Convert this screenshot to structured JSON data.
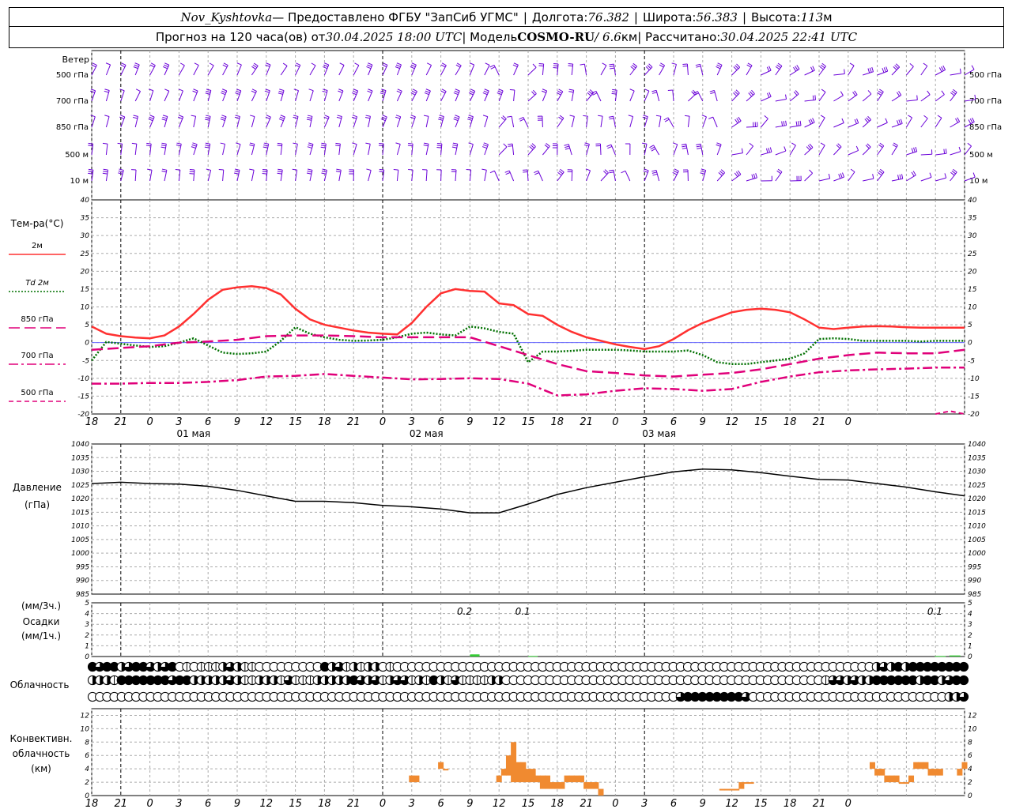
{
  "header": {
    "station": "Nov_Kyshtovka",
    "provided_by": "— Предоставлено ФГБУ \"ЗапСиб УГМС\"",
    "lon_label": "Долгота:",
    "lon": "76.382",
    "lat_label": "Широта:",
    "lat": "56.383",
    "alt_label": "Высота:",
    "alt": "113",
    "alt_unit": "м",
    "forecast_text": "Прогноз на 120 часа(ов) от",
    "forecast_time": "30.04.2025 18:00 UTC",
    "model_label": "| Модель",
    "model": "COSMO-RU",
    "model_res": "/ 6.6",
    "model_res_unit": "км",
    "calc_label": "| Рассчитано:",
    "calc_time": "30.04.2025 22:41 UTC"
  },
  "labels": {
    "wind": "Ветер",
    "wind_levels": [
      "500 гПа",
      "700 гПа",
      "850 гПа",
      "500 м",
      "10  м"
    ],
    "temp_title": "Тем-ра(°С)",
    "temp_legend": [
      {
        "label": "2м",
        "color": "#ff3030",
        "dash": "solid"
      },
      {
        "label": "Td  2м",
        "color": "#007000",
        "dash": "dotted"
      },
      {
        "label": "850 гПа",
        "color": "#e0007a",
        "dash": "longdash"
      },
      {
        "label": "700 гПа",
        "color": "#e0007a",
        "dash": "dashdot"
      },
      {
        "label": "500 гПа",
        "color": "#e0007a",
        "dash": "dash"
      }
    ],
    "pressure_title": "Давление",
    "pressure_unit": "(гПа)",
    "precip_units_3h": "(мм/3ч.)",
    "precip_title": "Осадки",
    "precip_units_1h": "(мм/1ч.)",
    "cloud_title": "Облачность",
    "conv_title_1": "Конвективн.",
    "conv_title_2": "облачность",
    "conv_unit": "(км)"
  },
  "chart_data": [
    {
      "type": "line",
      "title": "Тем-ра(°С)",
      "x_ticks": [
        "18",
        "21",
        "0",
        "3",
        "6",
        "9",
        "12",
        "15",
        "18",
        "21",
        "0",
        "3",
        "6",
        "9",
        "12",
        "15",
        "18",
        "21",
        "0",
        "3",
        "6",
        "9",
        "12",
        "15",
        "18",
        "21",
        "0"
      ],
      "dates": [
        "01 мая",
        "02 мая",
        "03 мая"
      ],
      "ylim": [
        -20,
        40
      ],
      "y_ticks": [
        -20,
        -15,
        -10,
        -5,
        0,
        5,
        10,
        15,
        20,
        25,
        30,
        35,
        40
      ],
      "series": [
        {
          "name": "2м",
          "x": [
            0,
            3,
            6,
            9,
            12,
            15,
            18,
            21,
            24,
            27,
            30,
            33,
            36,
            39,
            42,
            45,
            48,
            51,
            54,
            57,
            60,
            63,
            66,
            69,
            72,
            75,
            78,
            81,
            84,
            87,
            90,
            93,
            96,
            99,
            102,
            105,
            108,
            111,
            114,
            117,
            120,
            123,
            126,
            129,
            132,
            135,
            138,
            141,
            144,
            147,
            150,
            153,
            156,
            159,
            162,
            165,
            168,
            171,
            174,
            177,
            180
          ],
          "values": [
            4.5,
            2.5,
            1.8,
            1.4,
            1.2,
            2.0,
            4.5,
            8.0,
            12.0,
            14.8,
            15.5,
            15.8,
            15.3,
            13.5,
            9.5,
            6.5,
            5.0,
            4.2,
            3.4,
            2.8,
            2.5,
            2.3,
            5.5,
            10.0,
            13.8,
            15.0,
            14.5,
            14.3,
            11.0,
            10.5,
            8.0,
            7.5,
            5.0,
            3.0,
            1.5,
            0.5,
            -0.5,
            -1.2,
            -1.8,
            -1.0,
            1.0,
            3.5,
            5.5,
            7.0,
            8.5,
            9.2,
            9.5,
            9.2,
            8.5,
            6.5,
            4.2,
            3.8,
            4.2,
            4.5,
            4.6,
            4.5,
            4.3,
            4.2,
            4.2,
            4.2,
            4.2
          ]
        },
        {
          "name": "Td  2м",
          "x": [
            0,
            3,
            6,
            9,
            12,
            15,
            18,
            21,
            24,
            27,
            30,
            33,
            36,
            39,
            42,
            45,
            48,
            51,
            54,
            57,
            60,
            63,
            66,
            69,
            72,
            75,
            78,
            81,
            84,
            87,
            90,
            93,
            96,
            99,
            102,
            105,
            108,
            111,
            114,
            117,
            120,
            123,
            126,
            129,
            132,
            135,
            138,
            141,
            144,
            147,
            150,
            153,
            156,
            159,
            162,
            165,
            168,
            171,
            174,
            177,
            180
          ],
          "values": [
            -5.0,
            0.2,
            -0.3,
            -0.8,
            -1.2,
            -1.0,
            0.0,
            1.2,
            -0.8,
            -2.8,
            -3.2,
            -3.0,
            -2.5,
            0.5,
            4.3,
            2.5,
            1.5,
            0.8,
            0.5,
            0.6,
            0.8,
            1.5,
            2.5,
            2.8,
            2.3,
            2.0,
            4.5,
            4.0,
            3.0,
            2.5,
            -5.5,
            -2.5,
            -2.5,
            -2.3,
            -2.0,
            -2.0,
            -2.0,
            -2.2,
            -2.5,
            -2.5,
            -2.5,
            -2.2,
            -3.5,
            -5.5,
            -6.0,
            -6.0,
            -5.5,
            -5.0,
            -4.5,
            -3.0,
            1.0,
            1.2,
            1.0,
            0.5,
            0.5,
            0.5,
            0.5,
            0.3,
            0.5,
            0.5,
            0.5
          ]
        },
        {
          "name": "850 гПа",
          "x": [
            0,
            6,
            12,
            18,
            24,
            30,
            36,
            42,
            48,
            54,
            60,
            66,
            72,
            78,
            84,
            90,
            96,
            102,
            108,
            114,
            120,
            126,
            132,
            138,
            144,
            150,
            156,
            162,
            168,
            174,
            180
          ],
          "values": [
            -2.0,
            -1.5,
            -1.0,
            0.0,
            0.3,
            0.8,
            1.8,
            2.0,
            2.0,
            1.8,
            1.5,
            1.5,
            1.5,
            1.5,
            -1.0,
            -3.5,
            -6.0,
            -8.0,
            -8.5,
            -9.2,
            -9.5,
            -9.0,
            -8.5,
            -7.5,
            -6.0,
            -4.5,
            -3.5,
            -2.8,
            -3.0,
            -3.0,
            -2.0
          ]
        },
        {
          "name": "700 гПа",
          "x": [
            0,
            6,
            12,
            18,
            24,
            30,
            36,
            42,
            48,
            54,
            60,
            66,
            72,
            78,
            84,
            90,
            96,
            102,
            108,
            114,
            120,
            126,
            132,
            138,
            144,
            150,
            156,
            162,
            168,
            174,
            180
          ],
          "values": [
            -11.5,
            -11.5,
            -11.3,
            -11.3,
            -11.0,
            -10.5,
            -9.5,
            -9.3,
            -8.8,
            -9.3,
            -9.8,
            -10.3,
            -10.2,
            -10.0,
            -10.2,
            -11.5,
            -14.8,
            -14.5,
            -13.5,
            -12.8,
            -13.0,
            -13.5,
            -13.0,
            -11.0,
            -9.5,
            -8.3,
            -7.8,
            -7.5,
            -7.3,
            -7.0,
            -7.0
          ]
        },
        {
          "name": "500 гПа",
          "x": [
            174,
            177,
            180
          ],
          "values": [
            -20.0,
            -19.2,
            -20.0
          ]
        }
      ]
    },
    {
      "type": "line",
      "title": "Давление",
      "ylim": [
        985,
        1040
      ],
      "y_ticks": [
        985,
        990,
        995,
        1000,
        1005,
        1010,
        1015,
        1020,
        1025,
        1030,
        1035,
        1040
      ],
      "series": [
        {
          "name": "",
          "x": [
            0,
            6,
            12,
            18,
            24,
            30,
            36,
            42,
            48,
            54,
            60,
            66,
            72,
            78,
            84,
            90,
            96,
            102,
            108,
            114,
            120,
            126,
            132,
            138,
            144,
            150,
            156,
            162,
            168,
            174,
            180
          ],
          "values": [
            1025.5,
            1026.0,
            1025.5,
            1025.3,
            1024.5,
            1023.0,
            1021.0,
            1019.0,
            1019.0,
            1018.5,
            1017.5,
            1017.0,
            1016.2,
            1014.8,
            1014.8,
            1018.0,
            1021.5,
            1024.0,
            1026.0,
            1028.0,
            1029.8,
            1030.8,
            1030.5,
            1029.5,
            1028.2,
            1027.0,
            1026.8,
            1025.5,
            1024.2,
            1022.5,
            1021.0
          ]
        }
      ]
    },
    {
      "type": "bar",
      "title": "Осадки",
      "ylim": [
        0,
        5
      ],
      "y_ticks": [
        0,
        1,
        2,
        3,
        4,
        5
      ],
      "annotations": [
        "0.2",
        "0.1",
        "0.1"
      ],
      "series": [
        {
          "name": "",
          "x": [
            79,
            91,
            175,
            178
          ],
          "values": [
            0.2,
            0.05,
            0.05,
            0.1
          ]
        }
      ]
    },
    {
      "type": "bar",
      "title": "Конвективн. облачность",
      "ylim": [
        0,
        13
      ],
      "y_ticks": [
        0,
        2,
        4,
        6,
        8,
        10,
        12
      ],
      "series": [
        {
          "name": "",
          "x": [
            66,
            67,
            72,
            73,
            84,
            85,
            86,
            87,
            88,
            89,
            90,
            91,
            92,
            93,
            94,
            95,
            96,
            97,
            98,
            99,
            100,
            101,
            102,
            103,
            104,
            105,
            130,
            131,
            132,
            133,
            134,
            135,
            136,
            161,
            162,
            163,
            164,
            165,
            166,
            167,
            168,
            169,
            170,
            171,
            172,
            173,
            174,
            175,
            179,
            180
          ],
          "values": [
            3,
            3,
            5,
            4,
            3,
            4,
            6,
            8,
            5,
            5,
            4,
            4,
            3,
            3,
            3,
            2,
            2,
            2,
            3,
            3,
            3,
            3,
            2,
            2,
            2,
            1,
            1,
            1,
            1,
            1,
            2,
            2,
            2,
            5,
            4,
            4,
            3,
            3,
            3,
            2,
            2,
            3,
            5,
            5,
            5,
            4,
            4,
            4,
            4,
            5
          ],
          "bottoms": [
            2,
            2,
            4,
            4,
            2,
            3,
            3,
            2,
            2,
            2,
            2,
            2,
            2,
            1,
            1,
            1,
            1,
            1,
            2,
            2,
            2,
            2,
            1,
            1,
            1,
            0,
            1,
            1,
            1,
            1,
            1,
            2,
            2,
            4,
            3,
            3,
            2,
            2,
            2,
            2,
            2,
            2,
            4,
            4,
            4,
            3,
            3,
            3,
            3,
            4
          ]
        }
      ]
    }
  ],
  "cloud_rows": [
    "4344234432340101112321100000000042312122010000000000000000000000000000000000000000000000000000000000000000002324244444444",
    "2221444444434422222321122213111222224323123312142131111220000000000000000000000000000000000000000000013323224444442442344",
    "0000000000000000000000000000000000000000000000000000000000000000000000000000000003444444443000000000000000000000000000223"
  ],
  "colors": {
    "wind": "#6a00d8",
    "conv": "#f08a30",
    "precip": "#33cc33",
    "grid": "#aaaaaa",
    "zero_line": "#6a6aff"
  }
}
